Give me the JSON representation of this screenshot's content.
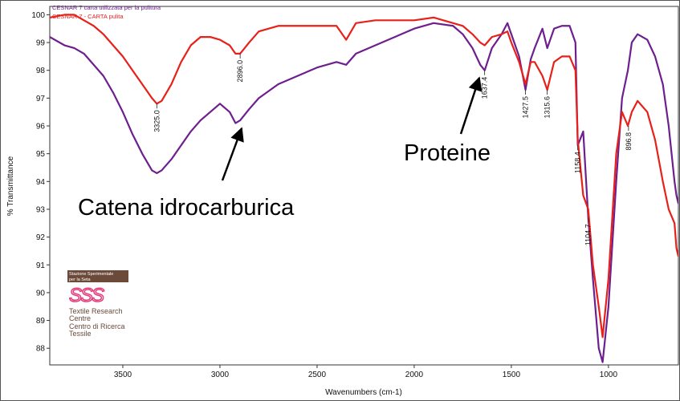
{
  "chart_data": {
    "type": "line",
    "xlabel": "Wavenumbers (cm-1)",
    "ylabel": "% Transmittance",
    "x": [
      3876,
      3800,
      3750,
      3700,
      3650,
      3600,
      3550,
      3500,
      3450,
      3400,
      3350,
      3325,
      3300,
      3250,
      3200,
      3150,
      3100,
      3050,
      3000,
      2950,
      2920,
      2896,
      2850,
      2800,
      2700,
      2600,
      2500,
      2400,
      2350,
      2300,
      2200,
      2100,
      2000,
      1900,
      1800,
      1750,
      1700,
      1660,
      1637,
      1600,
      1550,
      1520,
      1500,
      1460,
      1427,
      1400,
      1380,
      1340,
      1315,
      1280,
      1240,
      1200,
      1170,
      1158,
      1130,
      1104,
      1080,
      1050,
      1030,
      1000,
      960,
      930,
      900,
      880,
      850,
      800,
      760,
      720,
      690,
      660,
      650,
      640
    ],
    "series": [
      {
        "name": "CESNAR 7 carta utilizzata per la pulitura",
        "color": "#6e1f8e",
        "values": [
          99.2,
          98.9,
          98.8,
          98.6,
          98.2,
          97.8,
          97.2,
          96.5,
          95.7,
          95.0,
          94.4,
          94.3,
          94.4,
          94.8,
          95.3,
          95.8,
          96.2,
          96.5,
          96.8,
          96.5,
          96.1,
          96.2,
          96.6,
          97.0,
          97.5,
          97.8,
          98.1,
          98.3,
          98.2,
          98.6,
          98.9,
          99.2,
          99.5,
          99.7,
          99.6,
          99.3,
          98.8,
          98.2,
          98.0,
          98.8,
          99.3,
          99.7,
          99.3,
          98.5,
          97.3,
          98.4,
          98.8,
          99.5,
          98.8,
          99.5,
          99.6,
          99.6,
          99.0,
          95.3,
          95.8,
          92.7,
          90.5,
          88.0,
          87.5,
          89.5,
          94.0,
          97.0,
          98.0,
          99.0,
          99.3,
          99.1,
          98.5,
          97.5,
          96.0,
          94.0,
          93.5,
          93.2
        ]
      },
      {
        "name": "CESNAR 7 - CARTA pulita",
        "color": "#e8201a",
        "values": [
          99.9,
          100.0,
          100.0,
          99.8,
          99.6,
          99.3,
          98.9,
          98.5,
          98.0,
          97.5,
          97.0,
          96.8,
          96.9,
          97.5,
          98.3,
          98.9,
          99.2,
          99.2,
          99.1,
          98.9,
          98.6,
          98.6,
          99.0,
          99.4,
          99.6,
          99.6,
          99.6,
          99.6,
          99.1,
          99.7,
          99.8,
          99.8,
          99.8,
          99.9,
          99.7,
          99.6,
          99.3,
          99.0,
          98.9,
          99.2,
          99.3,
          99.4,
          99.0,
          98.3,
          97.5,
          98.3,
          98.3,
          97.8,
          97.3,
          98.3,
          98.5,
          98.5,
          98.0,
          95.5,
          93.5,
          93.0,
          91.0,
          89.5,
          88.4,
          90.5,
          95.0,
          96.5,
          96.0,
          96.5,
          96.9,
          96.5,
          95.5,
          94.0,
          93.0,
          92.5,
          91.6,
          91.3
        ]
      }
    ],
    "xlim": [
      3876,
      640
    ],
    "ylim": [
      87.4,
      100.3
    ],
    "xticks": [
      3500,
      3000,
      2500,
      2000,
      1500,
      1000
    ],
    "yticks": [
      88,
      89,
      90,
      91,
      92,
      93,
      94,
      95,
      96,
      97,
      98,
      99,
      100
    ],
    "peaks": [
      {
        "value": 3325,
        "label": "3325.0"
      },
      {
        "value": 2896,
        "label": "2896.0"
      },
      {
        "value": 1637.4,
        "label": "1637.4"
      },
      {
        "value": 1427.5,
        "label": "1427.5"
      },
      {
        "value": 1315.6,
        "label": "1315.6"
      },
      {
        "value": 1158.4,
        "label": "1158.4"
      },
      {
        "value": 1104.7,
        "label": "1104.7"
      },
      {
        "value": 896.8,
        "label": "896.8"
      }
    ],
    "annotations": [
      "Catena idrocarburica",
      "Proteine"
    ],
    "logo": {
      "header": [
        "Stazione Sperimentale",
        "per la Seta"
      ],
      "mark": "SSS",
      "lines": [
        "Textile Research",
        "Centre",
        "Centro di Ricerca",
        "Tessile"
      ]
    }
  }
}
